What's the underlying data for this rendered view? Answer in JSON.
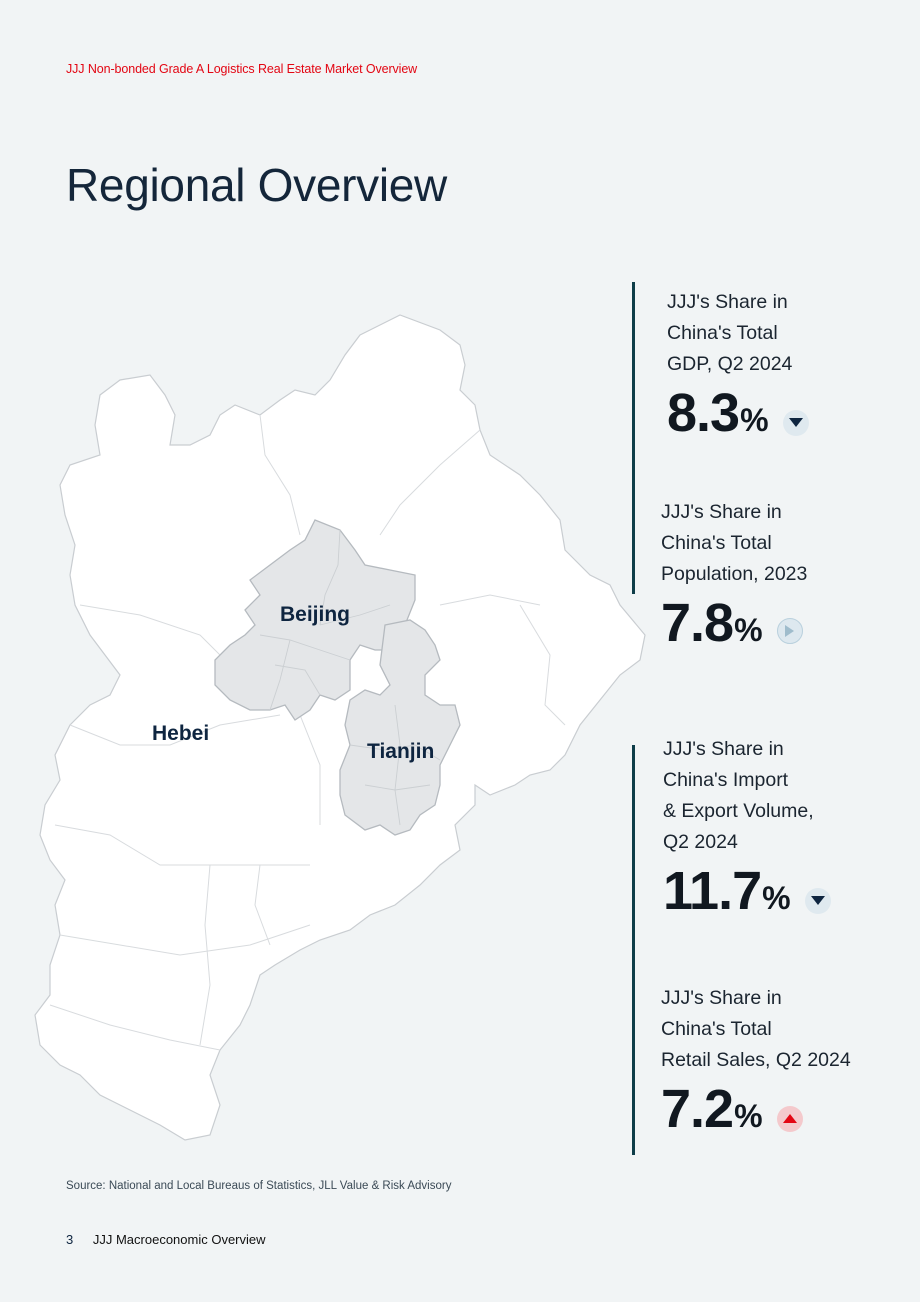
{
  "header": {
    "text": "JJJ Non-bonded Grade A Logistics Real Estate Market Overview"
  },
  "page_title": "Regional Overview",
  "map": {
    "labels": {
      "beijing": "Beijing",
      "tianjin": "Tianjin",
      "hebei": "Hebei"
    },
    "colors": {
      "highlight_fill": "#e4e6e8",
      "base_fill": "#ffffff",
      "border": "#c9cdd1"
    }
  },
  "stats": [
    {
      "label": "JJJ's Share in\nChina's Total\nGDP, Q2 2024",
      "value": "8.3",
      "unit": "%",
      "trend": "down",
      "trend_icon": "triangle-down-icon"
    },
    {
      "label": "JJJ's Share in\nChina's Total\nPopulation, 2023",
      "value": "7.8",
      "unit": "%",
      "trend": "flat",
      "trend_icon": "triangle-right-icon"
    },
    {
      "label": "JJJ's Share in\nChina's Import\n& Export Volume,\nQ2 2024",
      "value": "11.7",
      "unit": "%",
      "trend": "down",
      "trend_icon": "triangle-down-icon"
    },
    {
      "label": "JJJ's Share in\nChina's Total\nRetail Sales, Q2 2024",
      "value": "7.2",
      "unit": "%",
      "trend": "up",
      "trend_icon": "triangle-up-icon"
    }
  ],
  "colors": {
    "accent_red": "#e30613",
    "bar": "#0e3d48",
    "up": "#e30613",
    "down": "#0e2540"
  },
  "source": "Source: National and Local Bureaus of Statistics, JLL Value & Risk Advisory",
  "footer": {
    "page_number": "3",
    "section": "JJJ Macroeconomic Overview"
  }
}
